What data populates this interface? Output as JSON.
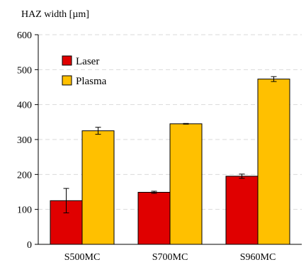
{
  "chart_data": {
    "type": "bar",
    "title": "",
    "ylabel": "HAZ width [µm]",
    "xlabel": "",
    "categories": [
      "S500MC",
      "S700MC",
      "S960MC"
    ],
    "series": [
      {
        "name": "Laser",
        "color": "#E00000",
        "values": [
          125,
          149,
          195
        ],
        "errors": [
          35,
          3,
          6
        ]
      },
      {
        "name": "Plasma",
        "color": "#FFC000",
        "values": [
          325,
          345,
          473
        ],
        "errors": [
          10,
          1,
          7
        ]
      }
    ],
    "ylim": [
      0,
      600
    ],
    "yticks": [
      0,
      100,
      200,
      300,
      400,
      500,
      600
    ],
    "grid": true,
    "legend_position": "top-left"
  }
}
